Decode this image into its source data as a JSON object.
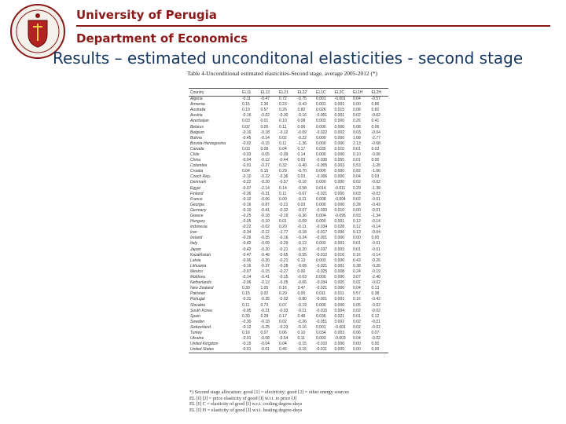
{
  "header": {
    "university": "University of Perugia",
    "department": "Department of Economics",
    "title": "Results – estimated unconditonal elasticities - second stage"
  },
  "table": {
    "caption": "Table 4-Unconditional estimated elasticities-Second stage, average 2005-2012 (*)",
    "columns": [
      "Country",
      "EL11",
      "EL12",
      "EL21",
      "EL22",
      "EL1C",
      "EL2C",
      "EL1H",
      "EL2H"
    ],
    "rows": [
      [
        "Algeria",
        "-0.11",
        "-0.47",
        "0.72",
        "-0.75",
        "0.001",
        "-0.001",
        "0.04",
        "-0.57"
      ],
      [
        "Armenia",
        "0.15",
        "1.36",
        "0.23",
        "-0.43",
        "0.001",
        "0.001",
        "0.00",
        "0.86"
      ],
      [
        "Australia",
        "0.19",
        "0.57",
        "0.26",
        "0.82",
        "0.026",
        "0.015",
        "0.08",
        "0.82"
      ],
      [
        "Austria",
        "-0.16",
        "-0.22",
        "-0.30",
        "-0.16",
        "-0.051",
        "0.001",
        "0.02",
        "-0.02"
      ],
      [
        "Azerbaijan",
        "0.03",
        "0.01",
        "0.10",
        "0.08",
        "0.003",
        "0.000",
        "0.26",
        "0.41"
      ],
      [
        "Belarus",
        "0.02",
        "0.05",
        "0.11",
        "0.06",
        "0.000",
        "0.000",
        "0.08",
        "0.06"
      ],
      [
        "Belgium",
        "-0.16",
        "-0.18",
        "-0.12",
        "-0.09",
        "-0.022",
        "0.002",
        "0.03",
        "-0.04"
      ],
      [
        "Bolivia",
        "-0.45",
        "-0.14",
        "0.02",
        "-0.22",
        "0.000",
        "0.000",
        "1.08",
        "-2.77"
      ],
      [
        "Bosnia-Herzegovina",
        "-0.02",
        "-0.15",
        "0.11",
        "-1.36",
        "0.000",
        "0.000",
        "2.13",
        "-0.68"
      ],
      [
        "Canada",
        "0.03",
        "0.08",
        "0.04",
        "0.17",
        "0.035",
        "0.010",
        "0.01",
        "0.03"
      ],
      [
        "Chile",
        "-0.03",
        "-0.05",
        "-0.09",
        "0.14",
        "0.000",
        "0.000",
        "0.10",
        "-0.06"
      ],
      [
        "China",
        "-0.04",
        "-0.12",
        "-0.44",
        "0.03",
        "-0.036",
        "0.055",
        "0.01",
        "0.00"
      ],
      [
        "Colombia",
        "-0.01",
        "-0.27",
        "0.32",
        "-0.40",
        "-0.005",
        "0.003",
        "0.53",
        "-1.26"
      ],
      [
        "Croatia",
        "0.04",
        "0.15",
        "0.29",
        "-0.70",
        "0.000",
        "0.000",
        "0.82",
        "-1.66"
      ],
      [
        "Czech Rep.",
        "-0.10",
        "-0.22",
        "-0.36",
        "0.03",
        "-0.006",
        "0.000",
        "0.04",
        "0.03"
      ],
      [
        "Denmark",
        "-0.22",
        "-0.20",
        "-0.57",
        "-0.16",
        "0.000",
        "0.000",
        "0.02",
        "-0.02"
      ],
      [
        "Egypt",
        "-0.07",
        "-2.14",
        "0.14",
        "-0.58",
        "0.014",
        "-0.011",
        "0.29",
        "-1.38"
      ],
      [
        "Finland",
        "-0.36",
        "-0.31",
        "0.11",
        "-0.67",
        "-0.021",
        "0.000",
        "0.03",
        "-0.03"
      ],
      [
        "France",
        "-0.12",
        "-0.06",
        "0.00",
        "-0.11",
        "0.008",
        "-0.004",
        "0.02",
        "-0.01"
      ],
      [
        "Georgia",
        "-0.16",
        "-0.87",
        "-0.21",
        "0.03",
        "0.000",
        "0.000",
        "0.28",
        "-0.43"
      ],
      [
        "Germany",
        "-0.10",
        "-0.41",
        "-0.32",
        "-0.07",
        "-0.020",
        "0.010",
        "0.00",
        "-0.01"
      ],
      [
        "Greece",
        "-0.25",
        "-0.18",
        "-0.19",
        "-0.36",
        "0.004",
        "-0.095",
        "0.93",
        "-1.34"
      ],
      [
        "Hungary",
        "-0.05",
        "-0.10",
        "0.01",
        "-0.09",
        "0.000",
        "0.001",
        "0.12",
        "-0.14"
      ],
      [
        "Indonesia",
        "-0.22",
        "-0.02",
        "0.20",
        "-0.11",
        "-0.034",
        "0.028",
        "0.12",
        "-0.14"
      ],
      [
        "Iran",
        "-0.34",
        "-0.12",
        "-1.77",
        "-0.18",
        "-0.017",
        "0.006",
        "0.13",
        "-0.04"
      ],
      [
        "Ireland",
        "-0.26",
        "-0.35",
        "-0.16",
        "-0.24",
        "-0.001",
        "0.000",
        "0.00",
        "0.00"
      ],
      [
        "Italy",
        "-0.42",
        "-0.09",
        "-0.29",
        "-0.13",
        "0.003",
        "0.001",
        "0.01",
        "-0.01"
      ],
      [
        "Japan",
        "-0.42",
        "-0.20",
        "-0.21",
        "-0.20",
        "-0.037",
        "0.003",
        "0.01",
        "-0.01"
      ],
      [
        "Kazakhstan",
        "-0.47",
        "-0.46",
        "-0.65",
        "-0.55",
        "-0.012",
        "0.016",
        "0.16",
        "-0.14"
      ],
      [
        "Latvia",
        "-0.06",
        "-0.20",
        "-0.21",
        "0.13",
        "0.003",
        "0.000",
        "0.43",
        "-0.26"
      ],
      [
        "Lithuania",
        "-0.16",
        "-0.37",
        "-0.28",
        "-0.08",
        "-0.021",
        "0.001",
        "0.38",
        "-0.26"
      ],
      [
        "Mexico",
        "-0.07",
        "-0.15",
        "-0.27",
        "0.00",
        "-0.025",
        "0.008",
        "0.24",
        "-0.19"
      ],
      [
        "Moldova",
        "-0.14",
        "-0.41",
        "-0.15",
        "-0.03",
        "0.000",
        "0.000",
        "3.07",
        "-2.40"
      ],
      [
        "Netherlands",
        "-0.06",
        "-0.12",
        "-0.25",
        "-0.06",
        "-0.034",
        "0.005",
        "0.02",
        "-0.02"
      ],
      [
        "New Zealand",
        "0.30",
        "1.05",
        "0.16",
        "3.47",
        "-0.021",
        "0.000",
        "0.04",
        "0.13"
      ],
      [
        "Pakistan",
        "0.15",
        "0.02",
        "0.29",
        "0.00",
        "0.011",
        "0.011",
        "0.57",
        "0.38"
      ],
      [
        "Portugal",
        "-0.31",
        "-0.35",
        "-0.02",
        "-0.80",
        "-0.001",
        "0.001",
        "0.16",
        "-0.42"
      ],
      [
        "Slovakia",
        "0.11",
        "0.73",
        "0.07",
        "-0.19",
        "0.000",
        "0.000",
        "0.05",
        "-0.02"
      ],
      [
        "South Korea",
        "-0.05",
        "-0.21",
        "-0.03",
        "-0.11",
        "-0.015",
        "0.004",
        "0.02",
        "-0.02"
      ],
      [
        "Spain",
        "0.30",
        "0.28",
        "0.17",
        "0.48",
        "0.036",
        "0.021",
        "0.01",
        "0.12"
      ],
      [
        "Sweden",
        "-0.30",
        "-0.18",
        "0.02",
        "-0.26",
        "-0.051",
        "0.002",
        "0.02",
        "-0.01"
      ],
      [
        "Switzerland",
        "-0.12",
        "-0.25",
        "-0.23",
        "-0.16",
        "0.001",
        "-0.001",
        "0.02",
        "-0.02"
      ],
      [
        "Turkey",
        "0.16",
        "0.07",
        "0.06",
        "0.10",
        "0.034",
        "0.003",
        "0.06",
        "0.07"
      ],
      [
        "Ukraine",
        "-0.01",
        "-0.08",
        "-0.54",
        "0.11",
        "0.003",
        "-0.003",
        "0.04",
        "-0.02"
      ],
      [
        "United Kingdom",
        "-0.15",
        "-0.04",
        "0.04",
        "-0.15",
        "-0.010",
        "0.000",
        "0.00",
        "0.00"
      ],
      [
        "United States",
        "-0.01",
        "-0.01",
        "0.45",
        "-0.16",
        "-0.011",
        "0.005",
        "0.00",
        "0.00"
      ]
    ]
  },
  "notes": [
    "*) Second stage allocation: good [1] = electricity; good [2] = other energy sources",
    "EL [I] [J] = price elasticity of good [I] w.r.t. to price [J]",
    "EL [I] C = elasticity of good [I] w.r.t. cooling degree-days",
    "EL [I] H = elasticity of good [I] w.r.t. heating degree-days"
  ],
  "colors": {
    "brand": "#8b1a1a",
    "title": "#17365d"
  }
}
